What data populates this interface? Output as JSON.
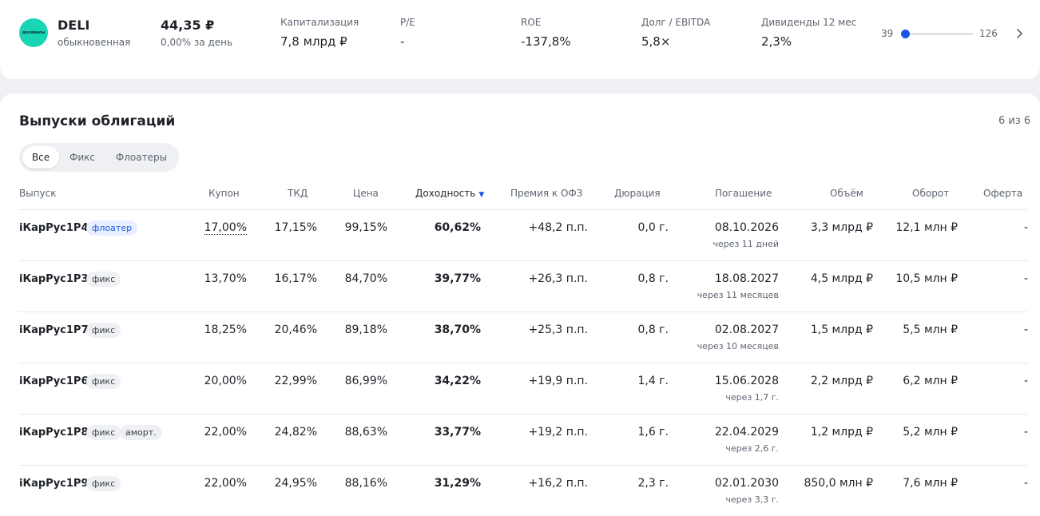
{
  "company": {
    "logo_text": "долямалы",
    "ticker": "DELI",
    "share_type": "обыкновенная",
    "price": "44,35 ₽",
    "change": "0,00% за день"
  },
  "metrics": [
    {
      "label": "Капитализация",
      "value": "7,8 млрд ₽"
    },
    {
      "label": "P/E",
      "value": "-"
    },
    {
      "label": "ROE",
      "value": "-137,8%"
    },
    {
      "label": "Долг / EBITDA",
      "value": "5,8×"
    },
    {
      "label": "Дивиденды 12 мес",
      "value": "2,3%"
    }
  ],
  "range": {
    "min": "39",
    "max": "126"
  },
  "bonds": {
    "title": "Выпуски облигаций",
    "count": "6 из 6",
    "filters": [
      "Все",
      "Фикс",
      "Флоатеры"
    ],
    "active_filter": "Все",
    "columns": [
      "Выпуск",
      "Купон",
      "ТКД",
      "Цена",
      "Доходность",
      "Премия к ОФЗ",
      "Дюрация",
      "Погашение",
      "Объём",
      "Оборот",
      "Оферта"
    ],
    "sorted_column": "Доходность",
    "rows": [
      {
        "name": "iКарРус1P4",
        "tags": [
          "флоатер"
        ],
        "coupon": "17,00%",
        "tkd": "17,15%",
        "price": "99,15%",
        "yield": "60,62%",
        "premium": "+48,2 п.п.",
        "duration": "0,0 г.",
        "maturity": "08.10.2026",
        "maturity_sub": "через 11 дней",
        "volume": "3,3 млрд ₽",
        "turnover": "12,1 млн ₽",
        "offer": "-"
      },
      {
        "name": "iКарРус1P3",
        "tags": [
          "фикс"
        ],
        "coupon": "13,70%",
        "tkd": "16,17%",
        "price": "84,70%",
        "yield": "39,77%",
        "premium": "+26,3 п.п.",
        "duration": "0,8 г.",
        "maturity": "18.08.2027",
        "maturity_sub": "через 11 месяцев",
        "volume": "4,5 млрд ₽",
        "turnover": "10,5 млн ₽",
        "offer": "-"
      },
      {
        "name": "iКарРус1P7",
        "tags": [
          "фикс"
        ],
        "coupon": "18,25%",
        "tkd": "20,46%",
        "price": "89,18%",
        "yield": "38,70%",
        "premium": "+25,3 п.п.",
        "duration": "0,8 г.",
        "maturity": "02.08.2027",
        "maturity_sub": "через 10 месяцев",
        "volume": "1,5 млрд ₽",
        "turnover": "5,5 млн ₽",
        "offer": "-"
      },
      {
        "name": "iКарРус1P6",
        "tags": [
          "фикс"
        ],
        "coupon": "20,00%",
        "tkd": "22,99%",
        "price": "86,99%",
        "yield": "34,22%",
        "premium": "+19,9 п.п.",
        "duration": "1,4 г.",
        "maturity": "15.06.2028",
        "maturity_sub": "через 1,7 г.",
        "volume": "2,2 млрд ₽",
        "turnover": "6,2 млн ₽",
        "offer": "-"
      },
      {
        "name": "iКарРус1P8",
        "tags": [
          "фикс",
          "аморт."
        ],
        "coupon": "22,00%",
        "tkd": "24,82%",
        "price": "88,63%",
        "yield": "33,77%",
        "premium": "+19,2 п.п.",
        "duration": "1,6 г.",
        "maturity": "22.04.2029",
        "maturity_sub": "через 2,6 г.",
        "volume": "1,2 млрд ₽",
        "turnover": "5,2 млн ₽",
        "offer": "-"
      },
      {
        "name": "iКарРус1P9",
        "tags": [
          "фикс"
        ],
        "coupon": "22,00%",
        "tkd": "24,95%",
        "price": "88,16%",
        "yield": "31,29%",
        "premium": "+16,2 п.п.",
        "duration": "2,3 г.",
        "maturity": "02.01.2030",
        "maturity_sub": "через 3,3 г.",
        "volume": "850,0 млн ₽",
        "turnover": "7,6 млн ₽",
        "offer": "-"
      }
    ]
  },
  "colors": {
    "accent": "#1a56e6",
    "logo_bg": "#19d5b3",
    "muted": "#5d6470"
  }
}
